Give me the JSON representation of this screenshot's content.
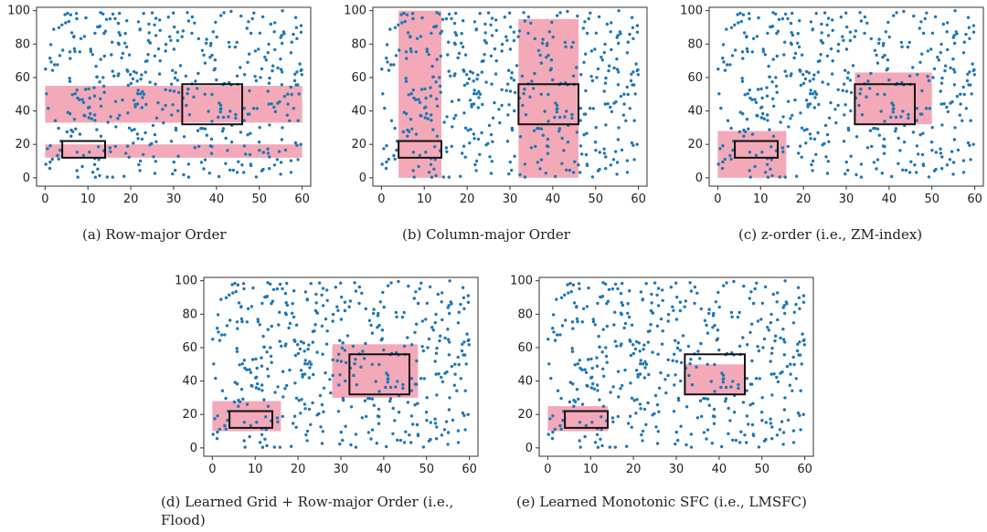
{
  "chart_data": [
    {
      "type": "scatter",
      "caption": "(a)  Row-major Order",
      "xlim": [
        -2,
        62
      ],
      "ylim": [
        -5,
        102
      ],
      "xticks": [
        "0",
        "10",
        "20",
        "30",
        "40",
        "50",
        "60"
      ],
      "yticks": [
        "0",
        "20",
        "40",
        "60",
        "80",
        "100"
      ],
      "query_boxes": [
        [
          4,
          12,
          14,
          22
        ],
        [
          32,
          32,
          46,
          56
        ]
      ],
      "scanned_regions": [
        [
          0,
          12,
          60,
          20
        ],
        [
          0,
          33,
          60,
          55
        ]
      ]
    },
    {
      "type": "scatter",
      "caption": "(b)  Column-major Order",
      "xlim": [
        -2,
        62
      ],
      "ylim": [
        -5,
        102
      ],
      "xticks": [
        "0",
        "10",
        "20",
        "30",
        "40",
        "50",
        "60"
      ],
      "yticks": [
        "0",
        "20",
        "40",
        "60",
        "80",
        "100"
      ],
      "query_boxes": [
        [
          4,
          12,
          14,
          22
        ],
        [
          32,
          32,
          46,
          56
        ]
      ],
      "scanned_regions": [
        [
          4,
          0,
          14,
          100
        ],
        [
          32,
          0,
          46,
          95
        ]
      ]
    },
    {
      "type": "scatter",
      "caption": "(c)  z-order (i.e., ZM-index)",
      "xlim": [
        -2,
        62
      ],
      "ylim": [
        -5,
        102
      ],
      "xticks": [
        "0",
        "10",
        "20",
        "30",
        "40",
        "50",
        "60"
      ],
      "yticks": [
        "0",
        "20",
        "40",
        "60",
        "80",
        "100"
      ],
      "query_boxes": [
        [
          4,
          12,
          14,
          22
        ],
        [
          32,
          32,
          46,
          56
        ]
      ],
      "scanned_regions": [
        [
          0,
          0,
          16,
          28
        ],
        [
          32,
          32,
          50,
          63
        ]
      ]
    },
    {
      "type": "scatter",
      "caption": "(d)  Learned Grid + Row-major Order (i.e.,",
      "caption2": "Flood)",
      "xlim": [
        -2,
        62
      ],
      "ylim": [
        -5,
        102
      ],
      "xticks": [
        "0",
        "10",
        "20",
        "30",
        "40",
        "50",
        "60"
      ],
      "yticks": [
        "0",
        "20",
        "40",
        "60",
        "80",
        "100"
      ],
      "query_boxes": [
        [
          4,
          12,
          14,
          22
        ],
        [
          32,
          32,
          46,
          56
        ]
      ],
      "scanned_regions": [
        [
          0,
          10,
          16,
          28
        ],
        [
          28,
          30,
          48,
          62
        ]
      ]
    },
    {
      "type": "scatter",
      "caption": "(e)  Learned Monotonic SFC (i.e., LMSFC)",
      "xlim": [
        -2,
        62
      ],
      "ylim": [
        -5,
        102
      ],
      "xticks": [
        "0",
        "10",
        "20",
        "30",
        "40",
        "50",
        "60"
      ],
      "yticks": [
        "0",
        "20",
        "40",
        "60",
        "80",
        "100"
      ],
      "query_boxes": [
        [
          4,
          12,
          14,
          22
        ],
        [
          32,
          32,
          46,
          56
        ]
      ],
      "scanned_regions": [
        [
          0,
          10,
          14,
          25
        ],
        [
          32,
          32,
          46,
          50
        ]
      ]
    }
  ],
  "colors": {
    "points": "#1f77b4",
    "scanned": "#f4a9b8",
    "box": "#111111"
  }
}
